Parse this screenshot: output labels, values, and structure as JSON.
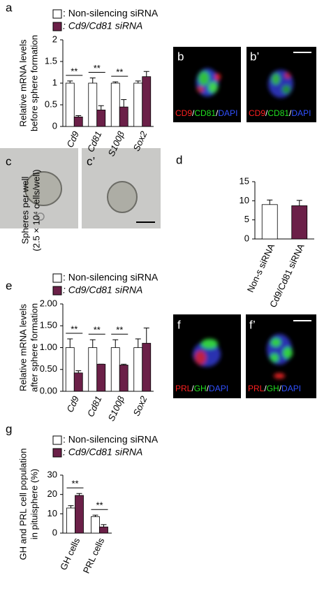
{
  "panel_labels": [
    "a",
    "b",
    "b’",
    "c",
    "c’",
    "d",
    "e",
    "f",
    "f’",
    "g"
  ],
  "image_captions": [
    [
      {
        "text": "CD9",
        "color": "#ff2020"
      },
      {
        "text": "/",
        "color": "#ffffff"
      },
      {
        "text": "CD81",
        "color": "#20e020"
      },
      {
        "text": "/",
        "color": "#ffffff"
      },
      {
        "text": "DAPI",
        "color": "#3050ff"
      }
    ],
    [
      {
        "text": "CD9",
        "color": "#ff2020"
      },
      {
        "text": "/",
        "color": "#ffffff"
      },
      {
        "text": "CD81",
        "color": "#20e020"
      },
      {
        "text": "/",
        "color": "#ffffff"
      },
      {
        "text": "DAPI",
        "color": "#3050ff"
      }
    ],
    [
      {
        "text": "PRL",
        "color": "#ff2020"
      },
      {
        "text": "/",
        "color": "#ffffff"
      },
      {
        "text": "GH",
        "color": "#20e020"
      },
      {
        "text": "/",
        "color": "#ffffff"
      },
      {
        "text": "DAPI",
        "color": "#3050ff"
      }
    ],
    [
      {
        "text": "PRL",
        "color": "#ff2020"
      },
      {
        "text": "/",
        "color": "#ffffff"
      },
      {
        "text": "GH",
        "color": "#20e020"
      },
      {
        "text": "/",
        "color": "#ffffff"
      },
      {
        "text": "DAPI",
        "color": "#3050ff"
      }
    ]
  ],
  "chart_data": [
    {
      "type": "bar",
      "ylabel": [
        "Relative mRNA levels",
        "before sphere formation"
      ],
      "categories": [
        "Cd9",
        "Cd81",
        "S100β",
        "Sox2"
      ],
      "italic_categories": true,
      "series": [
        {
          "name": ": Non-silencing siRNA",
          "color": "#ffffff",
          "values": [
            1.0,
            1.0,
            1.0,
            1.0
          ],
          "errors": [
            0.05,
            0.12,
            0.03,
            0.05
          ]
        },
        {
          "name": ": Cd9/Cd81 siRNA",
          "color": "#6b2048",
          "values": [
            0.22,
            0.38,
            0.45,
            1.15
          ],
          "errors": [
            0.03,
            0.1,
            0.17,
            0.12
          ]
        }
      ],
      "significance": [
        "**",
        "**",
        "**",
        null
      ],
      "ylim": [
        0,
        2
      ],
      "yticks": [
        0,
        0.5,
        1,
        1.5,
        2
      ]
    },
    {
      "type": "bar",
      "ylabel": [
        "Spheres per well",
        "(2.5 × 10⁴ cells/well)"
      ],
      "categories": [
        "Non-s siRNA",
        "Cd9/Cd81 siRNA"
      ],
      "italic_categories": false,
      "values": [
        9.0,
        8.7
      ],
      "errors": [
        1.2,
        1.4
      ],
      "colors": [
        "#ffffff",
        "#6b2048"
      ],
      "ylim": [
        0,
        15
      ],
      "yticks": [
        0,
        5,
        10,
        15
      ]
    },
    {
      "type": "bar",
      "ylabel": [
        "Relative mRNA levels",
        "after sphere formation"
      ],
      "categories": [
        "Cd9",
        "Cd81",
        "S100β",
        "Sox2"
      ],
      "italic_categories": true,
      "series": [
        {
          "name": ": Non-silencing siRNA",
          "color": "#ffffff",
          "values": [
            1.0,
            1.0,
            1.0,
            1.0
          ],
          "errors": [
            0.2,
            0.18,
            0.18,
            0.2
          ]
        },
        {
          "name": ": Cd9/Cd81 siRNA",
          "color": "#6b2048",
          "values": [
            0.42,
            0.62,
            0.6,
            1.1
          ],
          "errors": [
            0.05,
            0.0,
            0.02,
            0.35
          ]
        }
      ],
      "significance": [
        "**",
        "**",
        "**",
        null
      ],
      "ylim": [
        0,
        2
      ],
      "yticks": [
        {
          "value": 0,
          "label": "0.00"
        },
        {
          "value": 0.5,
          "label": "0.50"
        },
        {
          "value": 1,
          "label": "1.00"
        },
        {
          "value": 1.5,
          "label": "1.50"
        },
        {
          "value": 2,
          "label": "2.00"
        }
      ]
    },
    {
      "type": "bar",
      "ylabel": [
        "GH and PRL cell population",
        "in pituisphere (%)"
      ],
      "categories": [
        "GH cells",
        "PRL cells"
      ],
      "italic_categories": false,
      "series": [
        {
          "name": ": Non-silencing siRNA",
          "color": "#ffffff",
          "values": [
            13,
            8.5
          ],
          "errors": [
            1.2,
            0.8
          ]
        },
        {
          "name": ": Cd9/Cd81 siRNA",
          "color": "#6b2048",
          "values": [
            19.5,
            3.2
          ],
          "errors": [
            1.0,
            1.2
          ]
        }
      ],
      "significance": [
        "**",
        "**"
      ],
      "ylim": [
        0,
        30
      ],
      "yticks": [
        0,
        10,
        20,
        30
      ]
    }
  ]
}
